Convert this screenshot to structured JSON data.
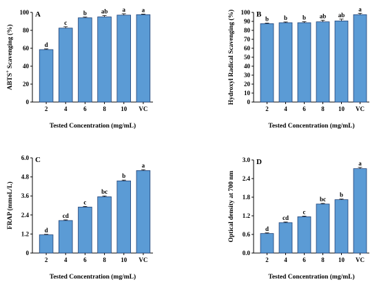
{
  "colors": {
    "bar_fill": "#5b9bd5",
    "bar_stroke": "#1f3f74",
    "axis": "#000000"
  },
  "chart_data": [
    {
      "type": "bar",
      "panel_label": "A",
      "title": "",
      "xlabel": "Tested Concentration (mg/mL)",
      "ylabel_main": "ABTS",
      "ylabel_sup": "+",
      "ylabel_rest": " Scavenging (%)",
      "categories": [
        "2",
        "4",
        "6",
        "8",
        "10",
        "VC"
      ],
      "values": [
        58.5,
        82.5,
        94,
        95,
        97,
        97.5
      ],
      "errors": [
        0.8,
        1.5,
        0.8,
        1.5,
        1.5,
        0.6
      ],
      "significance": [
        "d",
        "c",
        "b",
        "ab",
        "a",
        "a"
      ],
      "ylim": [
        0,
        100
      ],
      "yticks": [
        "0",
        "20",
        "40",
        "60",
        "80",
        "100"
      ],
      "grid": false
    },
    {
      "type": "bar",
      "panel_label": "B",
      "title": "",
      "xlabel": "Tested Concentration (mg/mL)",
      "ylabel_main": "Hydroxyl Radical Scavenging (%)",
      "ylabel_sup": "",
      "ylabel_rest": "",
      "categories": [
        "2",
        "4",
        "6",
        "8",
        "10",
        "VC"
      ],
      "values": [
        87.5,
        88.5,
        88.5,
        89.5,
        90.5,
        97.5
      ],
      "errors": [
        0.6,
        0.8,
        1.2,
        1.8,
        2.0,
        1.5
      ],
      "significance": [
        "b",
        "b",
        "b",
        "ab",
        "ab",
        "a"
      ],
      "ylim": [
        0,
        100
      ],
      "yticks": [
        "0",
        "10",
        "20",
        "30",
        "40",
        "50",
        "60",
        "70",
        "80",
        "90",
        "100"
      ],
      "grid": false
    },
    {
      "type": "bar",
      "panel_label": "C",
      "title": "",
      "xlabel": "Tested Concentration (mg/mL)",
      "ylabel_main": "FRAP (mmoL/L)",
      "ylabel_sup": "",
      "ylabel_rest": "",
      "categories": [
        "2",
        "4",
        "6",
        "8",
        "10",
        "VC"
      ],
      "values": [
        1.15,
        2.05,
        2.9,
        3.55,
        4.55,
        5.2
      ],
      "errors": [
        0.03,
        0.04,
        0.04,
        0.05,
        0.05,
        0.06
      ],
      "significance": [
        "d",
        "cd",
        "c",
        "bc",
        "b",
        "a"
      ],
      "ylim": [
        0,
        6
      ],
      "yticks": [
        "0",
        "1.2",
        "2.4",
        "3.6",
        "4.8",
        "6.0"
      ],
      "grid": false
    },
    {
      "type": "bar",
      "panel_label": "D",
      "title": "",
      "xlabel": "Tested Concentration (mg/mL)",
      "ylabel_main": "Optical density at 700 nm",
      "ylabel_sup": "",
      "ylabel_rest": "",
      "categories": [
        "2",
        "4",
        "6",
        "8",
        "10",
        "VC"
      ],
      "values": [
        0.63,
        0.98,
        1.17,
        1.58,
        1.72,
        2.72
      ],
      "errors": [
        0.02,
        0.02,
        0.02,
        0.02,
        0.02,
        0.04
      ],
      "significance": [
        "d",
        "cd",
        "c",
        "bc",
        "b",
        "a"
      ],
      "ylim": [
        0,
        3
      ],
      "yticks": [
        "0.0",
        "0.6",
        "1.2",
        "1.8",
        "2.4",
        "3.0"
      ],
      "grid": false
    }
  ]
}
